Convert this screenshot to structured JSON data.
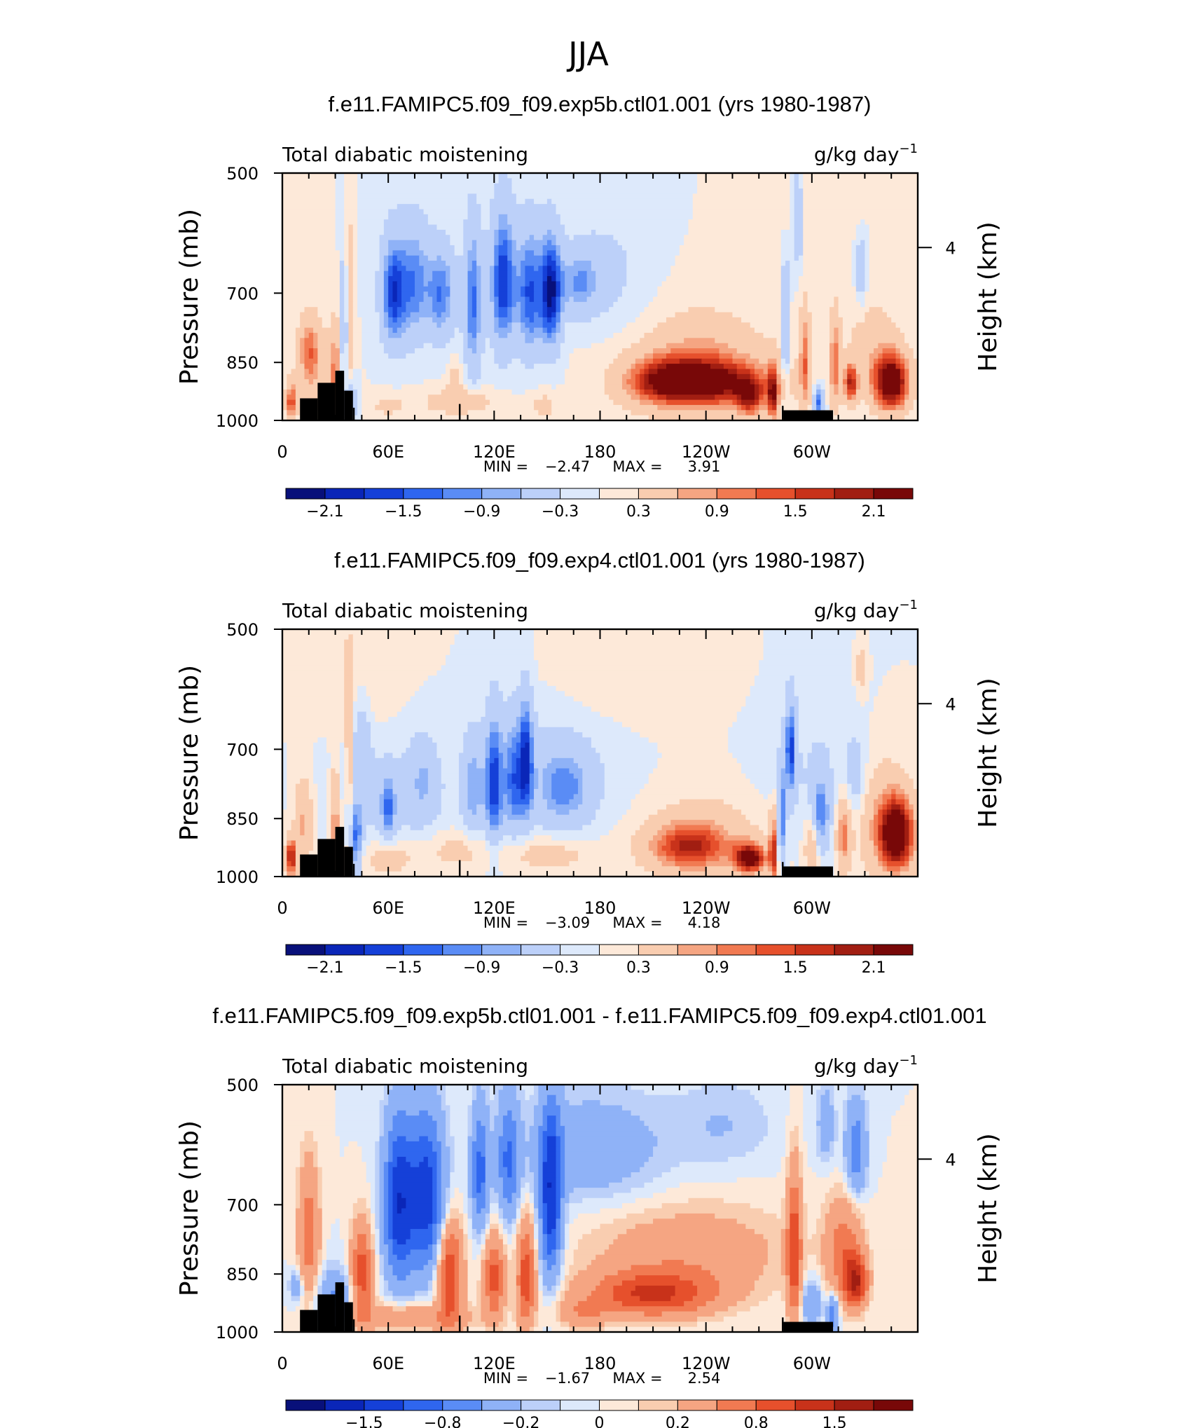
{
  "figure": {
    "title": "JJA",
    "palette": [
      "#08107a",
      "#0a26b8",
      "#1540d8",
      "#2f66ef",
      "#5a8cf5",
      "#8fb2f7",
      "#bcd0f9",
      "#dde9fb",
      "#fde9d9",
      "#f9cdb0",
      "#f5a582",
      "#f17a52",
      "#e6502c",
      "#c8321a",
      "#a11e12",
      "#780808"
    ]
  },
  "chart_data": [
    {
      "type": "heatmap",
      "title": "f.e11.FAMIPC5.f09_f09.exp5b.ctl01.001 (yrs 1980-1987)",
      "left_label": "Total diabatic moistening",
      "unit_label": "g/kg day",
      "unit_exp": "−1",
      "ylabel": "Pressure (mb)",
      "y2label": "Height (km)",
      "y_ticks": [
        "500",
        "700",
        "850",
        "1000"
      ],
      "y_values": [
        500,
        700,
        850,
        1000
      ],
      "y2_tick": "4",
      "x_ticks": [
        "0",
        "60E",
        "120E",
        "180",
        "120W",
        "60W"
      ],
      "x_values": [
        0,
        60,
        120,
        180,
        240,
        300
      ],
      "xlim": [
        0,
        360
      ],
      "min_label": "MIN =",
      "min": "−2.47",
      "max_label": "MAX =",
      "max": "3.91",
      "colorbar_labels": [
        "−2.1",
        "−1.5",
        "−0.9",
        "−0.3",
        "0.3",
        "0.9",
        "1.5",
        "2.1"
      ],
      "blobs": [
        {
          "lon": 63,
          "p": 700,
          "wx": 7,
          "wy": 105,
          "v": -2.0
        },
        {
          "lon": 75,
          "p": 680,
          "wx": 8,
          "wy": 110,
          "v": -1.4
        },
        {
          "lon": 90,
          "p": 700,
          "wx": 8,
          "wy": 90,
          "v": -1.5
        },
        {
          "lon": 108,
          "p": 720,
          "wx": 5,
          "wy": 150,
          "v": -1.6
        },
        {
          "lon": 125,
          "p": 680,
          "wx": 7,
          "wy": 130,
          "v": -2.1
        },
        {
          "lon": 140,
          "p": 700,
          "wx": 7,
          "wy": 120,
          "v": -1.8
        },
        {
          "lon": 152,
          "p": 700,
          "wx": 6,
          "wy": 110,
          "v": -2.3
        },
        {
          "lon": 168,
          "p": 680,
          "wx": 12,
          "wy": 60,
          "v": -1.1
        },
        {
          "lon": 185,
          "p": 660,
          "wx": 22,
          "wy": 110,
          "v": -0.4
        },
        {
          "lon": 35,
          "p": 760,
          "wx": 2,
          "wy": 130,
          "v": -1.1
        },
        {
          "lon": 39,
          "p": 950,
          "wx": 3,
          "wy": 45,
          "v": -1.1
        },
        {
          "lon": 285,
          "p": 770,
          "wx": 2,
          "wy": 120,
          "v": -1.4
        },
        {
          "lon": 292,
          "p": 560,
          "wx": 3,
          "wy": 80,
          "v": -1.0
        },
        {
          "lon": 304,
          "p": 950,
          "wx": 3,
          "wy": 40,
          "v": -1.6
        },
        {
          "lon": 328,
          "p": 660,
          "wx": 3,
          "wy": 60,
          "v": -0.8
        },
        {
          "lon": 15,
          "p": 820,
          "wx": 6,
          "wy": 75,
          "v": 1.2
        },
        {
          "lon": 20,
          "p": 880,
          "wx": 10,
          "wy": 110,
          "v": 0.6
        },
        {
          "lon": 30,
          "p": 880,
          "wx": 3,
          "wy": 120,
          "v": 1.2
        },
        {
          "lon": 38,
          "p": 720,
          "wx": 2,
          "wy": 140,
          "v": 1.0
        },
        {
          "lon": 5,
          "p": 950,
          "wx": 3,
          "wy": 50,
          "v": 1.8
        },
        {
          "lon": 60,
          "p": 960,
          "wx": 9,
          "wy": 30,
          "v": 0.5
        },
        {
          "lon": 100,
          "p": 950,
          "wx": 20,
          "wy": 35,
          "v": 0.7
        },
        {
          "lon": 98,
          "p": 890,
          "wx": 4,
          "wy": 50,
          "v": 0.5
        },
        {
          "lon": 148,
          "p": 960,
          "wx": 8,
          "wy": 35,
          "v": 0.5
        },
        {
          "lon": 240,
          "p": 900,
          "wx": 32,
          "wy": 55,
          "v": 2.2
        },
        {
          "lon": 215,
          "p": 895,
          "wx": 22,
          "wy": 60,
          "v": 1.3
        },
        {
          "lon": 240,
          "p": 880,
          "wx": 42,
          "wy": 130,
          "v": 0.7
        },
        {
          "lon": 237,
          "p": 820,
          "wx": 25,
          "wy": 80,
          "v": 0.4
        },
        {
          "lon": 265,
          "p": 940,
          "wx": 8,
          "wy": 50,
          "v": 1.5
        },
        {
          "lon": 278,
          "p": 930,
          "wx": 3,
          "wy": 70,
          "v": 2.0
        },
        {
          "lon": 296,
          "p": 850,
          "wx": 3,
          "wy": 120,
          "v": 1.4
        },
        {
          "lon": 313,
          "p": 850,
          "wx": 3,
          "wy": 110,
          "v": 1.4
        },
        {
          "lon": 322,
          "p": 900,
          "wx": 4,
          "wy": 50,
          "v": 2.0
        },
        {
          "lon": 345,
          "p": 900,
          "wx": 10,
          "wy": 70,
          "v": 3.0
        },
        {
          "lon": 335,
          "p": 820,
          "wx": 15,
          "wy": 110,
          "v": 0.6
        },
        {
          "lon": 300,
          "p": 540,
          "wx": 25,
          "wy": 60,
          "v": 0.3
        }
      ]
    },
    {
      "type": "heatmap",
      "title": "f.e11.FAMIPC5.f09_f09.exp4.ctl01.001 (yrs 1980-1987)",
      "left_label": "Total diabatic moistening",
      "unit_label": "g/kg day",
      "unit_exp": "−1",
      "ylabel": "Pressure (mb)",
      "y2label": "Height (km)",
      "y_ticks": [
        "500",
        "700",
        "850",
        "1000"
      ],
      "y_values": [
        500,
        700,
        850,
        1000
      ],
      "y2_tick": "4",
      "x_ticks": [
        "0",
        "60E",
        "120E",
        "180",
        "120W",
        "60W"
      ],
      "x_values": [
        0,
        60,
        120,
        180,
        240,
        300
      ],
      "xlim": [
        0,
        360
      ],
      "min_label": "MIN =",
      "min": "−3.09",
      "max_label": "MAX =",
      "max": "4.18",
      "colorbar_labels": [
        "−2.1",
        "−1.5",
        "−0.9",
        "−0.3",
        "0.3",
        "0.9",
        "1.5",
        "2.1"
      ],
      "blobs": [
        {
          "lon": 60,
          "p": 800,
          "wx": 30,
          "wy": 110,
          "v": -0.5
        },
        {
          "lon": 60,
          "p": 830,
          "wx": 4,
          "wy": 70,
          "v": -1.2
        },
        {
          "lon": 80,
          "p": 760,
          "wx": 8,
          "wy": 90,
          "v": -0.7
        },
        {
          "lon": 45,
          "p": 680,
          "wx": 5,
          "wy": 100,
          "v": -0.6
        },
        {
          "lon": 108,
          "p": 780,
          "wx": 6,
          "wy": 110,
          "v": -1.0
        },
        {
          "lon": 120,
          "p": 770,
          "wx": 5,
          "wy": 140,
          "v": -1.8
        },
        {
          "lon": 131,
          "p": 760,
          "wx": 5,
          "wy": 120,
          "v": -1.3
        },
        {
          "lon": 138,
          "p": 720,
          "wx": 4,
          "wy": 120,
          "v": -1.8
        },
        {
          "lon": 160,
          "p": 780,
          "wx": 14,
          "wy": 80,
          "v": -1.0
        },
        {
          "lon": 150,
          "p": 760,
          "wx": 38,
          "wy": 130,
          "v": -0.5
        },
        {
          "lon": 42,
          "p": 900,
          "wx": 3,
          "wy": 90,
          "v": -1.5
        },
        {
          "lon": 288,
          "p": 700,
          "wx": 3,
          "wy": 90,
          "v": -1.8
        },
        {
          "lon": 283,
          "p": 850,
          "wx": 2,
          "wy": 110,
          "v": -1.6
        },
        {
          "lon": 305,
          "p": 840,
          "wx": 5,
          "wy": 90,
          "v": -1.3
        },
        {
          "lon": 325,
          "p": 760,
          "wx": 6,
          "wy": 90,
          "v": -0.6
        },
        {
          "lon": 300,
          "p": 760,
          "wx": 30,
          "wy": 170,
          "v": -0.3
        },
        {
          "lon": 5,
          "p": 950,
          "wx": 3,
          "wy": 50,
          "v": 2.3
        },
        {
          "lon": 12,
          "p": 860,
          "wx": 5,
          "wy": 100,
          "v": 1.0
        },
        {
          "lon": 30,
          "p": 860,
          "wx": 3,
          "wy": 120,
          "v": 1.3
        },
        {
          "lon": 38,
          "p": 720,
          "wx": 2,
          "wy": 150,
          "v": 0.9
        },
        {
          "lon": 60,
          "p": 950,
          "wx": 15,
          "wy": 45,
          "v": 0.6
        },
        {
          "lon": 100,
          "p": 930,
          "wx": 20,
          "wy": 50,
          "v": 0.5
        },
        {
          "lon": 150,
          "p": 940,
          "wx": 25,
          "wy": 45,
          "v": 0.6
        },
        {
          "lon": 230,
          "p": 920,
          "wx": 22,
          "wy": 60,
          "v": 1.7
        },
        {
          "lon": 265,
          "p": 950,
          "wx": 9,
          "wy": 40,
          "v": 2.6
        },
        {
          "lon": 240,
          "p": 900,
          "wx": 35,
          "wy": 110,
          "v": 0.6
        },
        {
          "lon": 278,
          "p": 930,
          "wx": 2,
          "wy": 90,
          "v": 2.0
        },
        {
          "lon": 300,
          "p": 920,
          "wx": 4,
          "wy": 80,
          "v": 1.0
        },
        {
          "lon": 318,
          "p": 890,
          "wx": 4,
          "wy": 90,
          "v": 1.4
        },
        {
          "lon": 348,
          "p": 890,
          "wx": 10,
          "wy": 90,
          "v": 3.0
        },
        {
          "lon": 338,
          "p": 850,
          "wx": 16,
          "wy": 140,
          "v": 0.7
        },
        {
          "lon": 200,
          "p": 560,
          "wx": 45,
          "wy": 80,
          "v": 0.3
        },
        {
          "lon": 40,
          "p": 560,
          "wx": 25,
          "wy": 90,
          "v": 0.3
        },
        {
          "lon": 328,
          "p": 560,
          "wx": 3,
          "wy": 40,
          "v": 0.6
        }
      ]
    },
    {
      "type": "heatmap",
      "title": "f.e11.FAMIPC5.f09_f09.exp5b.ctl01.001 - f.e11.FAMIPC5.f09_f09.exp4.ctl01.001",
      "left_label": "Total diabatic moistening",
      "unit_label": "g/kg day",
      "unit_exp": "−1",
      "ylabel": "Pressure (mb)",
      "y2label": "Height (km)",
      "y_ticks": [
        "500",
        "700",
        "850",
        "1000"
      ],
      "y_values": [
        500,
        700,
        850,
        1000
      ],
      "y2_tick": "4",
      "x_ticks": [
        "0",
        "60E",
        "120E",
        "180",
        "120W",
        "60W"
      ],
      "x_values": [
        0,
        60,
        120,
        180,
        240,
        300
      ],
      "xlim": [
        0,
        360
      ],
      "min_label": "MIN =",
      "min": "−1.67",
      "max_label": "MAX =",
      "max": "2.54",
      "colorbar_labels": [
        "−1.5",
        "−0.8",
        "−0.2",
        "0",
        "0.2",
        "0.8",
        "1.5"
      ],
      "blobs": [
        {
          "lon": 66,
          "p": 700,
          "wx": 8,
          "wy": 150,
          "v": -1.2
        },
        {
          "lon": 82,
          "p": 680,
          "wx": 9,
          "wy": 140,
          "v": -1.0
        },
        {
          "lon": 76,
          "p": 700,
          "wx": 16,
          "wy": 170,
          "v": -0.4
        },
        {
          "lon": 112,
          "p": 640,
          "wx": 5,
          "wy": 110,
          "v": -0.9
        },
        {
          "lon": 128,
          "p": 620,
          "wx": 6,
          "wy": 110,
          "v": -0.8
        },
        {
          "lon": 152,
          "p": 690,
          "wx": 6,
          "wy": 160,
          "v": -1.4
        },
        {
          "lon": 175,
          "p": 600,
          "wx": 40,
          "wy": 90,
          "v": -0.4
        },
        {
          "lon": 250,
          "p": 560,
          "wx": 30,
          "wy": 70,
          "v": -0.2
        },
        {
          "lon": 325,
          "p": 600,
          "wx": 6,
          "wy": 80,
          "v": -0.7
        },
        {
          "lon": 308,
          "p": 560,
          "wx": 5,
          "wy": 60,
          "v": -0.4
        },
        {
          "lon": 30,
          "p": 920,
          "wx": 10,
          "wy": 80,
          "v": -0.6
        },
        {
          "lon": 8,
          "p": 880,
          "wx": 4,
          "wy": 40,
          "v": -0.4
        },
        {
          "lon": 300,
          "p": 920,
          "wx": 6,
          "wy": 60,
          "v": -0.5
        },
        {
          "lon": 312,
          "p": 950,
          "wx": 3,
          "wy": 50,
          "v": -0.8
        },
        {
          "lon": 15,
          "p": 760,
          "wx": 6,
          "wy": 140,
          "v": 0.7
        },
        {
          "lon": 45,
          "p": 850,
          "wx": 6,
          "wy": 110,
          "v": 1.0
        },
        {
          "lon": 95,
          "p": 850,
          "wx": 7,
          "wy": 120,
          "v": 1.1
        },
        {
          "lon": 120,
          "p": 860,
          "wx": 6,
          "wy": 100,
          "v": 0.9
        },
        {
          "lon": 138,
          "p": 860,
          "wx": 5,
          "wy": 120,
          "v": 1.0
        },
        {
          "lon": 70,
          "p": 960,
          "wx": 35,
          "wy": 35,
          "v": 0.5
        },
        {
          "lon": 210,
          "p": 900,
          "wx": 35,
          "wy": 55,
          "v": 1.1
        },
        {
          "lon": 230,
          "p": 800,
          "wx": 55,
          "wy": 100,
          "v": 0.4
        },
        {
          "lon": 290,
          "p": 800,
          "wx": 4,
          "wy": 170,
          "v": 1.0
        },
        {
          "lon": 325,
          "p": 870,
          "wx": 6,
          "wy": 60,
          "v": 1.4
        },
        {
          "lon": 318,
          "p": 800,
          "wx": 10,
          "wy": 110,
          "v": 0.7
        },
        {
          "lon": 170,
          "p": 950,
          "wx": 15,
          "wy": 40,
          "v": 0.4
        }
      ]
    }
  ]
}
